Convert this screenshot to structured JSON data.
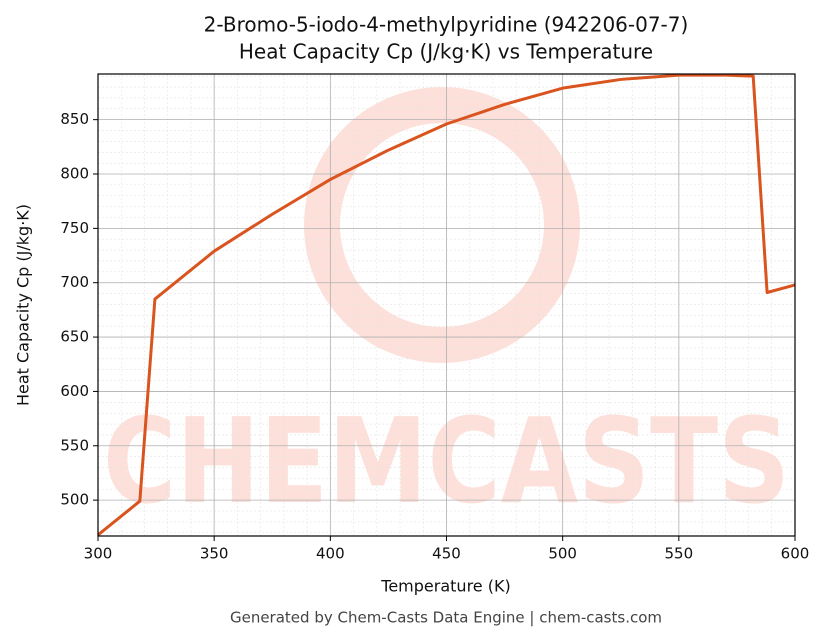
{
  "chart_data": {
    "type": "line",
    "title": "2-Bromo-5-iodo-4-methylpyridine (942206-07-7)",
    "subtitle": "Heat Capacity Cp (J/kg·K) vs Temperature",
    "x_label": "Temperature (K)",
    "y_label": "Heat Capacity Cp (J/kg·K)",
    "watermark": "CHEMCASTS",
    "footer": "Generated by Chem-Casts Data Engine | chem-casts.com",
    "x": [
      300,
      318,
      324.5,
      350,
      375,
      400,
      425,
      450,
      475,
      500,
      525,
      550,
      570,
      582,
      588,
      600
    ],
    "series": [
      {
        "name": "Cp",
        "color": "#d9541e",
        "values": [
          468,
          499,
          685,
          729,
          763,
          795,
          822,
          846,
          864,
          879,
          887,
          891,
          891,
          890,
          691,
          698
        ]
      }
    ],
    "xlim": [
      300,
      600
    ],
    "ylim": [
      467,
      892
    ],
    "xticks": [
      300,
      350,
      400,
      450,
      500,
      550,
      600
    ],
    "yticks": [
      500,
      550,
      600,
      650,
      700,
      750,
      800,
      850
    ],
    "grid": true
  }
}
